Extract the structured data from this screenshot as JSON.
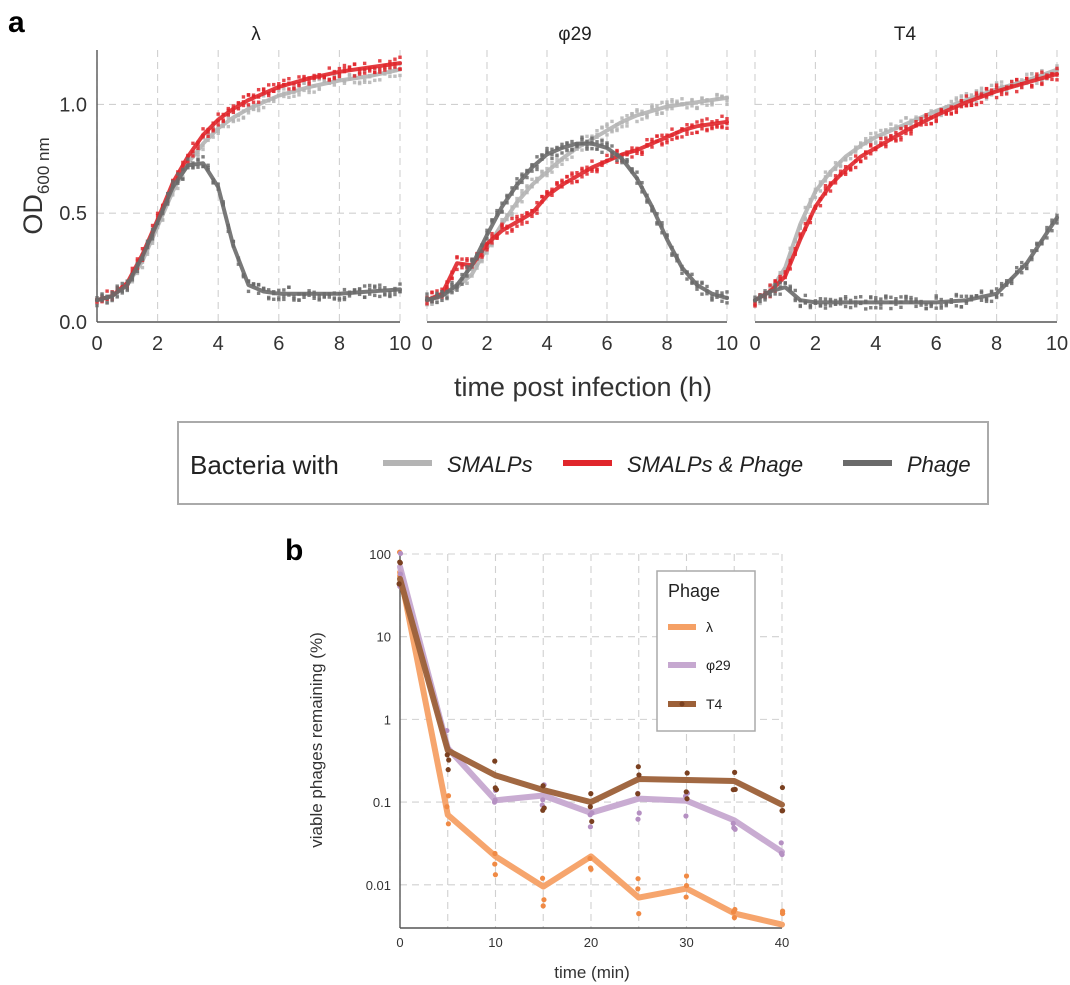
{
  "panel_a": {
    "letter": "a",
    "facets": [
      "λ",
      "φ29",
      "T4"
    ],
    "xlabel": "time post infection (h)",
    "ylabel_main": "OD",
    "ylabel_sub": "600 nm",
    "x_ticks": [
      "0",
      "2",
      "4",
      "6",
      "8",
      "10"
    ],
    "y_ticks": [
      "0.0",
      "0.5",
      "1.0"
    ],
    "legend_title": "Bacteria with",
    "legend_items": [
      "SMALPs",
      "SMALPs & Phage",
      "Phage"
    ]
  },
  "panel_b": {
    "letter": "b",
    "xlabel": "time (min)",
    "ylabel": "viable phages remaining (%)",
    "x_ticks": [
      "0",
      "10",
      "20",
      "30",
      "40"
    ],
    "y_ticks": [
      "0.01",
      "0.1",
      "1",
      "10",
      "100"
    ],
    "legend_title": "Phage",
    "legend_items": [
      "λ",
      "φ29",
      "T4"
    ]
  },
  "colors": {
    "smalps": "#b4b4b4",
    "smalps_phage": "#e0262b",
    "phage": "#6a6a6a",
    "lambda": "#f5a065",
    "phi29": "#c6a8d0",
    "t4": "#9c6038"
  },
  "chart_data": [
    {
      "type": "line",
      "facet": "λ",
      "xlabel": "time post infection (h)",
      "ylabel": "OD600 nm",
      "xlim": [
        0,
        10
      ],
      "ylim": [
        0,
        1.25
      ],
      "grid": true,
      "x": [
        0,
        0.5,
        1,
        1.5,
        2,
        2.5,
        3,
        3.5,
        4,
        4.5,
        5,
        5.5,
        6,
        7,
        8,
        9,
        10
      ],
      "series": [
        {
          "name": "SMALPs",
          "values": [
            0.1,
            0.12,
            0.17,
            0.28,
            0.44,
            0.6,
            0.73,
            0.82,
            0.89,
            0.94,
            0.98,
            1.01,
            1.04,
            1.08,
            1.11,
            1.13,
            1.16
          ]
        },
        {
          "name": "SMALPs & Phage",
          "values": [
            0.1,
            0.12,
            0.18,
            0.31,
            0.47,
            0.64,
            0.76,
            0.86,
            0.93,
            0.98,
            1.02,
            1.05,
            1.08,
            1.12,
            1.15,
            1.17,
            1.19
          ]
        },
        {
          "name": "Phage",
          "values": [
            0.1,
            0.12,
            0.17,
            0.3,
            0.46,
            0.62,
            0.72,
            0.73,
            0.62,
            0.35,
            0.17,
            0.14,
            0.13,
            0.13,
            0.13,
            0.14,
            0.15
          ]
        }
      ]
    },
    {
      "type": "line",
      "facet": "φ29",
      "xlabel": "time post infection (h)",
      "ylabel": "OD600 nm",
      "xlim": [
        0,
        10
      ],
      "ylim": [
        0,
        1.25
      ],
      "grid": true,
      "x": [
        0,
        0.5,
        1,
        1.5,
        2,
        2.5,
        3,
        3.5,
        4,
        4.5,
        5,
        5.5,
        6,
        6.5,
        7,
        7.5,
        8,
        8.5,
        9,
        9.5,
        10
      ],
      "series": [
        {
          "name": "SMALPs",
          "values": [
            0.1,
            0.12,
            0.16,
            0.22,
            0.34,
            0.45,
            0.55,
            0.63,
            0.69,
            0.75,
            0.8,
            0.84,
            0.88,
            0.92,
            0.95,
            0.97,
            0.99,
            1.0,
            1.01,
            1.02,
            1.03
          ]
        },
        {
          "name": "SMALPs & Phage",
          "values": [
            0.1,
            0.13,
            0.27,
            0.26,
            0.36,
            0.42,
            0.46,
            0.5,
            0.58,
            0.63,
            0.67,
            0.71,
            0.74,
            0.77,
            0.79,
            0.82,
            0.85,
            0.88,
            0.9,
            0.91,
            0.92
          ]
        },
        {
          "name": "Phage",
          "values": [
            0.1,
            0.12,
            0.17,
            0.26,
            0.4,
            0.53,
            0.63,
            0.71,
            0.77,
            0.8,
            0.82,
            0.82,
            0.8,
            0.75,
            0.66,
            0.53,
            0.38,
            0.25,
            0.17,
            0.13,
            0.11
          ]
        }
      ]
    },
    {
      "type": "line",
      "facet": "T4",
      "xlabel": "time post infection (h)",
      "ylabel": "OD600 nm",
      "xlim": [
        0,
        10
      ],
      "ylim": [
        0,
        1.25
      ],
      "grid": true,
      "x": [
        0,
        0.5,
        1,
        1.5,
        2,
        2.5,
        3,
        3.5,
        4,
        5,
        6,
        7,
        8,
        9,
        10
      ],
      "series": [
        {
          "name": "SMALPs",
          "values": [
            0.1,
            0.14,
            0.25,
            0.45,
            0.6,
            0.69,
            0.76,
            0.81,
            0.85,
            0.91,
            0.97,
            1.02,
            1.07,
            1.11,
            1.16
          ]
        },
        {
          "name": "SMALPs & Phage",
          "values": [
            0.1,
            0.14,
            0.21,
            0.38,
            0.53,
            0.63,
            0.7,
            0.76,
            0.8,
            0.88,
            0.95,
            1.01,
            1.06,
            1.1,
            1.14
          ]
        },
        {
          "name": "Phage",
          "values": [
            0.1,
            0.14,
            0.16,
            0.1,
            0.09,
            0.09,
            0.09,
            0.09,
            0.09,
            0.09,
            0.09,
            0.1,
            0.13,
            0.27,
            0.48
          ]
        }
      ]
    },
    {
      "type": "line",
      "xlabel": "time (min)",
      "ylabel": "viable phages remaining (%)",
      "xlim": [
        0,
        40
      ],
      "ylim": [
        0.003,
        100
      ],
      "yscale": "log",
      "grid": true,
      "legend_position": "top-right",
      "x": [
        0,
        5,
        10,
        15,
        20,
        25,
        30,
        35,
        40
      ],
      "series": [
        {
          "name": "λ",
          "values": [
            60,
            0.07,
            0.022,
            0.0095,
            0.022,
            0.007,
            0.009,
            0.0045,
            0.0033
          ]
        },
        {
          "name": "φ29",
          "values": [
            70,
            0.45,
            0.105,
            0.12,
            0.074,
            0.11,
            0.104,
            0.06,
            0.025
          ]
        },
        {
          "name": "T4",
          "values": [
            50,
            0.42,
            0.21,
            0.14,
            0.1,
            0.19,
            0.185,
            0.18,
            0.093
          ]
        }
      ]
    }
  ]
}
